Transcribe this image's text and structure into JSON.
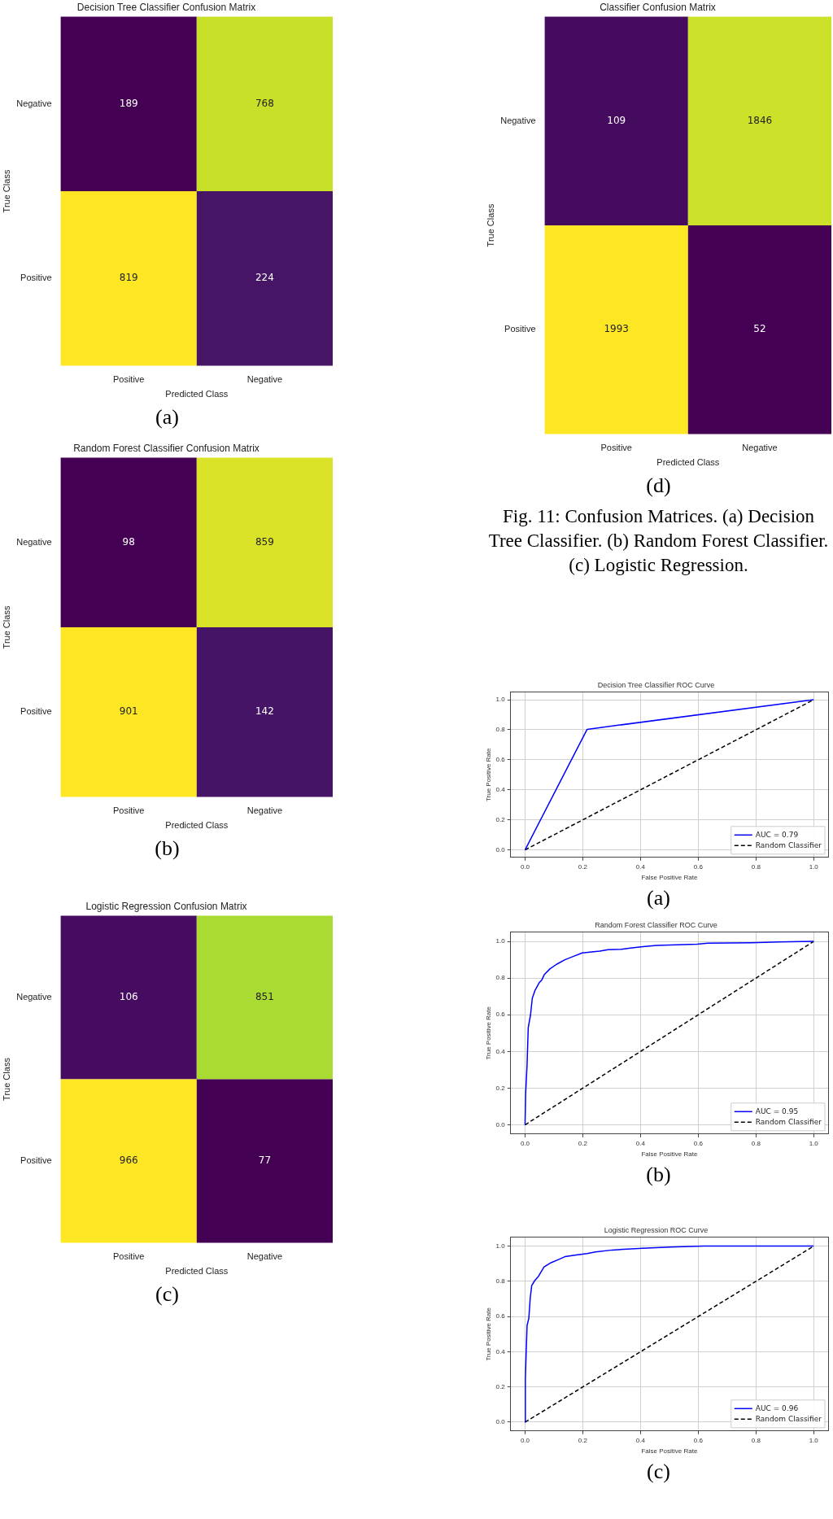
{
  "chart_data": [
    {
      "type": "heatmap",
      "title": "Decision Tree Classifier Confusion Matrix",
      "xlabel": "Predicted Class",
      "ylabel": "True Class",
      "categories": [
        "Positive",
        "Negative"
      ],
      "y_categories": [
        "Negative",
        "Positive"
      ],
      "cells": [
        [
          189,
          768
        ],
        [
          819,
          224
        ]
      ],
      "data_labels": true,
      "annotations": [
        "(a)"
      ]
    },
    {
      "type": "heatmap",
      "title": "Random Forest Classifier Confusion Matrix",
      "xlabel": "Predicted Class",
      "ylabel": "True Class",
      "categories": [
        "Positive",
        "Negative"
      ],
      "y_categories": [
        "Negative",
        "Positive"
      ],
      "cells": [
        [
          98,
          859
        ],
        [
          901,
          142
        ]
      ],
      "data_labels": true,
      "annotations": [
        "(b)"
      ]
    },
    {
      "type": "heatmap",
      "title": "Logistic Regression Confusion Matrix",
      "xlabel": "Predicted Class",
      "ylabel": "True Class",
      "categories": [
        "Positive",
        "Negative"
      ],
      "y_categories": [
        "Negative",
        "Positive"
      ],
      "cells": [
        [
          106,
          851
        ],
        [
          966,
          77
        ]
      ],
      "data_labels": true,
      "annotations": [
        "(c)"
      ]
    },
    {
      "type": "heatmap",
      "title": "Classifier Confusion Matrix",
      "xlabel": "Predicted Class",
      "ylabel": "True Class",
      "categories": [
        "Positive",
        "Negative"
      ],
      "y_categories": [
        "Negative",
        "Positive"
      ],
      "cells": [
        [
          109,
          1846
        ],
        [
          1993,
          52
        ]
      ],
      "data_labels": true,
      "annotations": [
        "(d)",
        "Fig. 11: Confusion Matrices. (a) Decision Tree Classifier. (b) Random Forest Classifier. (c) Logistic Regression."
      ]
    },
    {
      "type": "line",
      "title": "Decision Tree Classifier ROC Curve",
      "xlabel": "False Positive Rate",
      "ylabel": "True Positive Rate",
      "xlim": [
        -0.05,
        1.05
      ],
      "ylim": [
        -0.05,
        1.05
      ],
      "xticks": [
        {
          "value": 0,
          "label": "0.0"
        },
        {
          "value": 0.2,
          "label": "0.2"
        },
        {
          "value": 0.4,
          "label": "0.4"
        },
        {
          "value": 0.6,
          "label": "0.6"
        },
        {
          "value": 0.8,
          "label": "0.8"
        },
        {
          "value": 1,
          "label": "1.0"
        }
      ],
      "yticks": [
        {
          "value": 0,
          "label": "0.0"
        },
        {
          "value": 0.2,
          "label": "0.2"
        },
        {
          "value": 0.4,
          "label": "0.4"
        },
        {
          "value": 0.6,
          "label": "0.6"
        },
        {
          "value": 0.8,
          "label": "0.8"
        },
        {
          "value": 1,
          "label": "1.0"
        }
      ],
      "grid": true,
      "legend": "bottom right",
      "annotations": [
        "(a)"
      ],
      "series": [
        {
          "name": "AUC = 0.79",
          "color": "#0000ff",
          "x": [
            0,
            0.215,
            1
          ],
          "values": [
            0,
            0.803,
            1
          ]
        },
        {
          "name": "Random Classifier",
          "color": "#000000",
          "line_style": "dashed",
          "x": [
            0,
            1
          ],
          "values": [
            0,
            1
          ]
        }
      ]
    },
    {
      "type": "line",
      "title": "Random Forest Classifier ROC Curve",
      "xlabel": "False Positive Rate",
      "ylabel": "True Positive Rate",
      "xlim": [
        -0.05,
        1.05
      ],
      "ylim": [
        -0.05,
        1.05
      ],
      "xticks": [
        {
          "value": 0,
          "label": "0.0"
        },
        {
          "value": 0.2,
          "label": "0.2"
        },
        {
          "value": 0.4,
          "label": "0.4"
        },
        {
          "value": 0.6,
          "label": "0.6"
        },
        {
          "value": 0.8,
          "label": "0.8"
        },
        {
          "value": 1,
          "label": "1.0"
        }
      ],
      "yticks": [
        {
          "value": 0,
          "label": "0.0"
        },
        {
          "value": 0.2,
          "label": "0.2"
        },
        {
          "value": 0.4,
          "label": "0.4"
        },
        {
          "value": 0.6,
          "label": "0.6"
        },
        {
          "value": 0.8,
          "label": "0.8"
        },
        {
          "value": 1,
          "label": "1.0"
        }
      ],
      "grid": true,
      "legend": "bottom right",
      "annotations": [
        "(b)"
      ],
      "series": [
        {
          "name": "AUC = 0.95",
          "color": "#0000ff",
          "x": [
            0,
            0.002,
            0.007,
            0.011,
            0.019,
            0.025,
            0.035,
            0.049,
            0.058,
            0.067,
            0.086,
            0.109,
            0.138,
            0.17,
            0.198,
            0.231,
            0.259,
            0.287,
            0.334,
            0.371,
            0.409,
            0.456,
            0.596,
            0.633,
            0.783,
            0.877,
            1
          ],
          "values": [
            0,
            0.17,
            0.33,
            0.53,
            0.6,
            0.69,
            0.735,
            0.775,
            0.79,
            0.82,
            0.85,
            0.875,
            0.9,
            0.92,
            0.937,
            0.943,
            0.947,
            0.955,
            0.957,
            0.965,
            0.972,
            0.978,
            0.985,
            0.99,
            0.993,
            0.997,
            1
          ]
        },
        {
          "name": "Random Classifier",
          "color": "#000000",
          "line_style": "dashed",
          "x": [
            0,
            1
          ],
          "values": [
            0,
            1
          ]
        }
      ]
    },
    {
      "type": "line",
      "title": "Logistic Regression ROC Curve",
      "xlabel": "False Positive Rate",
      "ylabel": "True Positive Rate",
      "xlim": [
        -0.05,
        1.05
      ],
      "ylim": [
        -0.05,
        1.05
      ],
      "xticks": [
        {
          "value": 0,
          "label": "0.0"
        },
        {
          "value": 0.2,
          "label": "0.2"
        },
        {
          "value": 0.4,
          "label": "0.4"
        },
        {
          "value": 0.6,
          "label": "0.6"
        },
        {
          "value": 0.8,
          "label": "0.8"
        },
        {
          "value": 1,
          "label": "1.0"
        }
      ],
      "yticks": [
        {
          "value": 0,
          "label": "0.0"
        },
        {
          "value": 0.2,
          "label": "0.2"
        },
        {
          "value": 0.4,
          "label": "0.4"
        },
        {
          "value": 0.6,
          "label": "0.6"
        },
        {
          "value": 0.8,
          "label": "0.8"
        },
        {
          "value": 1,
          "label": "1.0"
        }
      ],
      "grid": true,
      "legend": "bottom right",
      "annotations": [
        "(c)"
      ],
      "series": [
        {
          "name": "AUC = 0.96",
          "color": "#0000ff",
          "x": [
            0,
            0.001,
            0.004,
            0.007,
            0.013,
            0.018,
            0.023,
            0.033,
            0.047,
            0.057,
            0.066,
            0.09,
            0.119,
            0.138,
            0.177,
            0.215,
            0.244,
            0.302,
            0.407,
            0.503,
            0.619,
            1
          ],
          "values": [
            0,
            0.242,
            0.406,
            0.55,
            0.59,
            0.707,
            0.776,
            0.803,
            0.83,
            0.858,
            0.882,
            0.906,
            0.926,
            0.94,
            0.95,
            0.958,
            0.967,
            0.978,
            0.988,
            0.995,
            1,
            1
          ]
        },
        {
          "name": "Random Classifier",
          "color": "#000000",
          "line_style": "dashed",
          "x": [
            0,
            1
          ],
          "values": [
            0,
            1
          ]
        }
      ]
    }
  ]
}
